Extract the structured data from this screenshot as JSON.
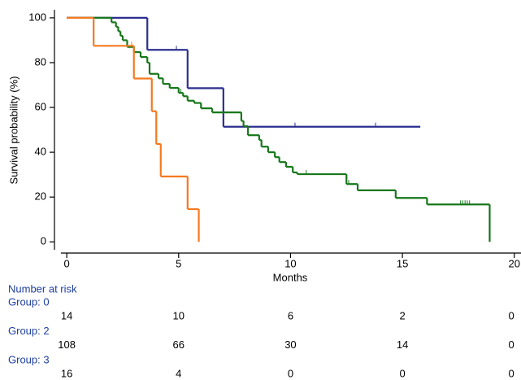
{
  "chart_data": {
    "type": "step",
    "ylabel": "Survival probability (%)",
    "xlabel": "Months",
    "xlim": [
      -0.55,
      20.3
    ],
    "ylim": [
      -5,
      103.6
    ],
    "xticks": [
      0,
      5,
      10,
      15,
      20
    ],
    "yticks": [
      0,
      20,
      40,
      60,
      80,
      100
    ],
    "risk_title": "Number at risk",
    "series": [
      {
        "name": "Group: 0",
        "color": "#2b2f8f",
        "x": [
          0,
          3.6,
          5.4,
          7.0,
          15.8
        ],
        "values": [
          100,
          85.7,
          68.6,
          51.4,
          51.4
        ],
        "censored": {
          "x": [
            4.9,
            10.2,
            13.8
          ],
          "values": [
            85.7,
            51.4,
            51.4
          ]
        },
        "at_risk": [
          14,
          10,
          6,
          2,
          0
        ]
      },
      {
        "name": "Group: 2",
        "color": "#17771a",
        "x": [
          0,
          2.0,
          2.2,
          2.3,
          2.4,
          2.5,
          2.7,
          3.0,
          3.3,
          3.6,
          3.7,
          4.1,
          4.3,
          4.6,
          5.0,
          5.2,
          5.4,
          5.7,
          6.0,
          6.5,
          7.8,
          7.9,
          8.1,
          8.6,
          8.7,
          9.0,
          9.3,
          9.5,
          9.8,
          10.1,
          10.3,
          12.5,
          13.0,
          14.7,
          16.1,
          18.9
        ],
        "values": [
          100,
          98,
          96,
          94,
          92,
          90,
          87,
          84.7,
          82.5,
          80,
          75,
          73,
          70.5,
          68.7,
          66.5,
          65,
          63,
          62,
          59.6,
          57.8,
          54,
          51.6,
          47.6,
          45.5,
          42.5,
          40,
          37.8,
          35.6,
          33.5,
          31,
          30.2,
          25.8,
          23,
          19.6,
          16.7,
          0
        ],
        "censored": {
          "x": [
            5.1,
            10.7,
            12.6,
            17.6,
            17.7,
            17.8,
            17.9,
            18.0
          ],
          "values": [
            66.5,
            30.2,
            25.8,
            16.7,
            16.7,
            16.7,
            16.7,
            16.7
          ]
        },
        "at_risk": [
          108,
          66,
          30,
          14,
          0
        ]
      },
      {
        "name": "Group: 3",
        "color": "#f47920",
        "x": [
          0,
          1.2,
          3.0,
          3.8,
          4.0,
          4.2,
          5.4,
          5.9
        ],
        "values": [
          100,
          87.5,
          72.9,
          58.3,
          43.7,
          29.2,
          14.6,
          0
        ],
        "censored": {
          "x": [
            2.9
          ],
          "values": [
            87.5
          ]
        },
        "at_risk": [
          16,
          4,
          0,
          0,
          0
        ]
      }
    ]
  }
}
